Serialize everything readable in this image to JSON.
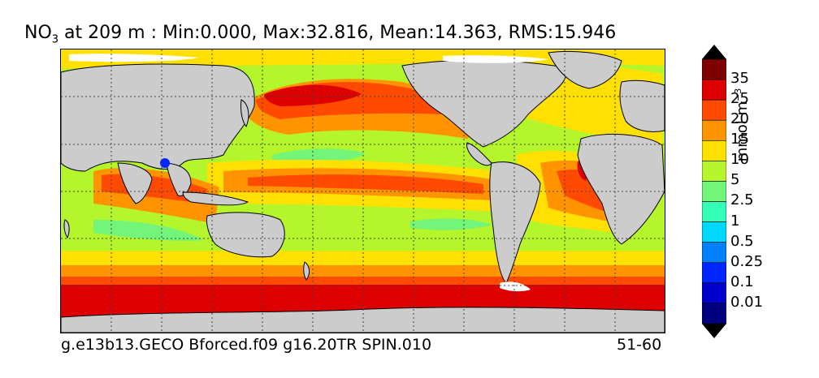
{
  "title": {
    "var_main": "NO",
    "var_sub": "3",
    "rest": " at 209 m : Min:0.000, Max:32.816, Mean:14.363, RMS:15.946"
  },
  "footer": {
    "case_name": "g.e13b13.GECO Bforced.f09 g16.20TR SPIN.010",
    "years": "51-60"
  },
  "colorbar": {
    "units_main": "mmol m",
    "units_sup": "−3",
    "labels": [
      "35",
      "25",
      "20",
      "15",
      "10",
      "5",
      "2.5",
      "1",
      "0.5",
      "0.25",
      "0.1",
      "0.01"
    ],
    "colors": [
      "#800000",
      "#dd0000",
      "#ff4a00",
      "#ff9400",
      "#ffe000",
      "#b4f52c",
      "#72f578",
      "#33ffb8",
      "#00d8ff",
      "#0080ff",
      "#0026ff",
      "#0000cd",
      "#000080"
    ],
    "extend_max_color": "#000000",
    "extend_min_color": "#000000"
  },
  "map_style": {
    "land_color": "#cccccc",
    "ice_color": "#ffffff",
    "grid": "dotted"
  }
}
